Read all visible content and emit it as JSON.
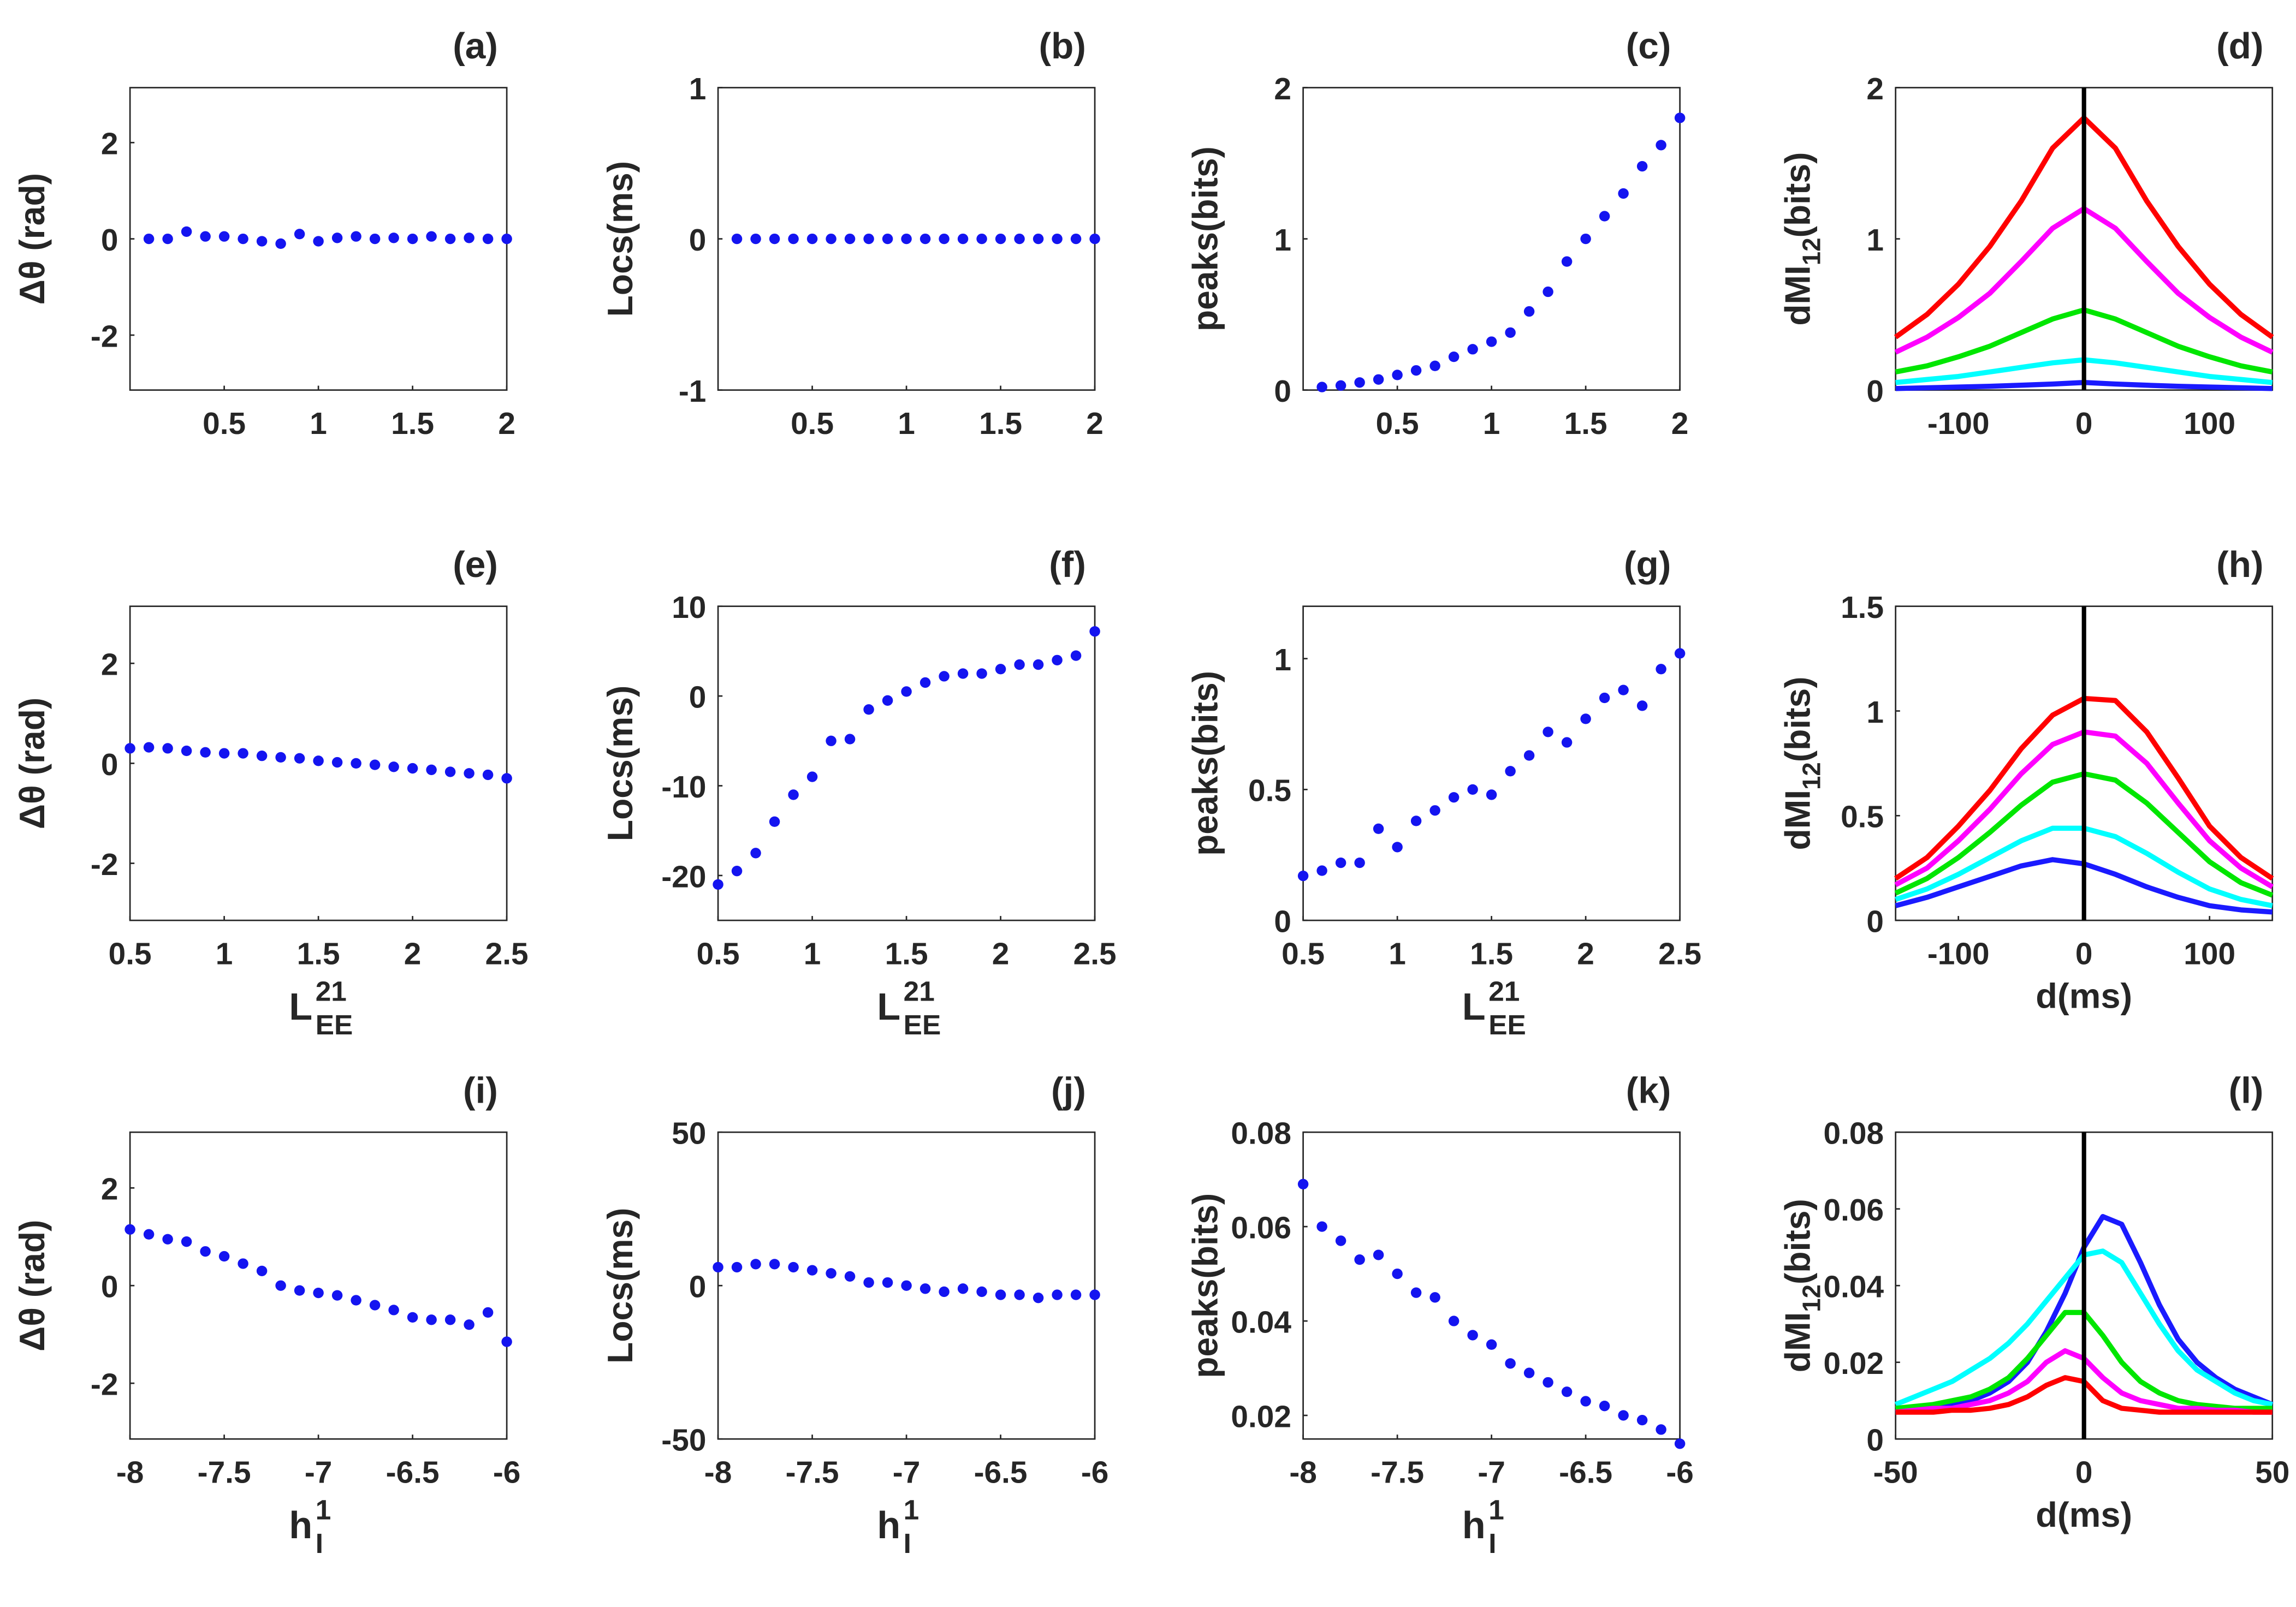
{
  "chart_data": [
    {
      "type": "scatter",
      "title": "(a)",
      "ylabel": "Δθ (rad)",
      "color": "#1414f0",
      "x": [
        0.1,
        0.2,
        0.3,
        0.4,
        0.5,
        0.6,
        0.7,
        0.8,
        0.9,
        1.0,
        1.1,
        1.2,
        1.3,
        1.4,
        1.5,
        1.6,
        1.7,
        1.8,
        1.9,
        2.0
      ],
      "values": [
        0,
        0,
        0.15,
        0.05,
        0.05,
        0,
        -0.05,
        -0.1,
        0.1,
        -0.05,
        0.02,
        0.05,
        0,
        0.02,
        0,
        0.05,
        0,
        0.02,
        0,
        0
      ],
      "xlim": [
        0,
        2
      ],
      "xticks": [
        0.5,
        1,
        1.5,
        2
      ],
      "ylim": [
        -3.1416,
        3.1416
      ],
      "yticks": [
        -2,
        0,
        2
      ]
    },
    {
      "type": "scatter",
      "title": "(b)",
      "ylabel": "Locs(ms)",
      "color": "#1414f0",
      "x": [
        0.1,
        0.2,
        0.3,
        0.4,
        0.5,
        0.6,
        0.7,
        0.8,
        0.9,
        1.0,
        1.1,
        1.2,
        1.3,
        1.4,
        1.5,
        1.6,
        1.7,
        1.8,
        1.9,
        2.0
      ],
      "values": [
        0,
        0,
        0,
        0,
        0,
        0,
        0,
        0,
        0,
        0,
        0,
        0,
        0,
        0,
        0,
        0,
        0,
        0,
        0,
        0
      ],
      "xlim": [
        0,
        2
      ],
      "xticks": [
        0.5,
        1,
        1.5,
        2
      ],
      "ylim": [
        -1,
        1
      ],
      "yticks": [
        -1,
        0,
        1
      ]
    },
    {
      "type": "scatter",
      "title": "(c)",
      "ylabel": "peaks(bits)",
      "color": "#1414f0",
      "x": [
        0.1,
        0.2,
        0.3,
        0.4,
        0.5,
        0.6,
        0.7,
        0.8,
        0.9,
        1.0,
        1.1,
        1.2,
        1.3,
        1.4,
        1.5,
        1.6,
        1.7,
        1.8,
        1.9,
        2.0
      ],
      "values": [
        0.02,
        0.03,
        0.05,
        0.07,
        0.1,
        0.13,
        0.16,
        0.22,
        0.27,
        0.32,
        0.38,
        0.52,
        0.65,
        0.85,
        1.0,
        1.15,
        1.3,
        1.48,
        1.62,
        1.8
      ],
      "xlim": [
        0,
        2
      ],
      "xticks": [
        0.5,
        1,
        1.5,
        2
      ],
      "ylim": [
        0,
        2
      ],
      "yticks": [
        0,
        1,
        2
      ]
    },
    {
      "type": "line",
      "title": "(d)",
      "ylabel": "dMI",
      "ylabel_sub": "12",
      "ylabel_tail": "(bits)",
      "vline": 0,
      "x": [
        -150,
        -125,
        -100,
        -75,
        -50,
        -25,
        0,
        25,
        50,
        75,
        100,
        125,
        150
      ],
      "series": [
        {
          "color": "#ff0000",
          "values": [
            0.35,
            0.5,
            0.7,
            0.95,
            1.25,
            1.6,
            1.8,
            1.6,
            1.25,
            0.95,
            0.7,
            0.5,
            0.35
          ]
        },
        {
          "color": "#ff00ff",
          "values": [
            0.25,
            0.35,
            0.48,
            0.64,
            0.85,
            1.07,
            1.2,
            1.07,
            0.85,
            0.64,
            0.48,
            0.35,
            0.25
          ]
        },
        {
          "color": "#00e600",
          "values": [
            0.12,
            0.16,
            0.22,
            0.29,
            0.38,
            0.47,
            0.53,
            0.47,
            0.38,
            0.29,
            0.22,
            0.16,
            0.12
          ]
        },
        {
          "color": "#00ffff",
          "values": [
            0.05,
            0.07,
            0.09,
            0.12,
            0.15,
            0.18,
            0.2,
            0.18,
            0.15,
            0.12,
            0.09,
            0.07,
            0.05
          ]
        },
        {
          "color": "#1a1aff",
          "values": [
            0.01,
            0.015,
            0.02,
            0.025,
            0.032,
            0.04,
            0.05,
            0.04,
            0.032,
            0.025,
            0.02,
            0.015,
            0.01
          ]
        }
      ],
      "xlim": [
        -150,
        150
      ],
      "xticks": [
        -100,
        0,
        100
      ],
      "ylim": [
        0,
        2
      ],
      "yticks": [
        0,
        1,
        2
      ]
    },
    {
      "type": "scatter",
      "title": "(e)",
      "ylabel": "Δθ (rad)",
      "xlabel": "L",
      "xlabel_sup": "21",
      "xlabel_sub": "EE",
      "color": "#1414f0",
      "x": [
        0.5,
        0.6,
        0.7,
        0.8,
        0.9,
        1.0,
        1.1,
        1.2,
        1.3,
        1.4,
        1.5,
        1.6,
        1.7,
        1.8,
        1.9,
        2.0,
        2.1,
        2.2,
        2.3,
        2.4,
        2.5
      ],
      "values": [
        0.3,
        0.32,
        0.3,
        0.25,
        0.22,
        0.2,
        0.2,
        0.15,
        0.12,
        0.1,
        0.05,
        0.02,
        0,
        -0.03,
        -0.07,
        -0.1,
        -0.13,
        -0.17,
        -0.2,
        -0.23,
        -0.3
      ],
      "xlim": [
        0.5,
        2.5
      ],
      "xticks": [
        0.5,
        1,
        1.5,
        2,
        2.5
      ],
      "ylim": [
        -3.1416,
        3.1416
      ],
      "yticks": [
        -2,
        0,
        2
      ]
    },
    {
      "type": "scatter",
      "title": "(f)",
      "ylabel": "Locs(ms)",
      "xlabel": "L",
      "xlabel_sup": "21",
      "xlabel_sub": "EE",
      "color": "#1414f0",
      "x": [
        0.5,
        0.6,
        0.7,
        0.8,
        0.9,
        1.0,
        1.1,
        1.2,
        1.3,
        1.4,
        1.5,
        1.6,
        1.7,
        1.8,
        1.9,
        2.0,
        2.1,
        2.2,
        2.3,
        2.4,
        2.5
      ],
      "values": [
        -21,
        -19.5,
        -17.5,
        -14,
        -11,
        -9,
        -5,
        -4.8,
        -1.5,
        -0.5,
        0.5,
        1.5,
        2.2,
        2.5,
        2.5,
        3,
        3.5,
        3.5,
        4,
        4.5,
        7.2
      ],
      "xlim": [
        0.5,
        2.5
      ],
      "xticks": [
        0.5,
        1,
        1.5,
        2,
        2.5
      ],
      "ylim": [
        -25,
        10
      ],
      "yticks": [
        -20,
        -10,
        0,
        10
      ]
    },
    {
      "type": "scatter",
      "title": "(g)",
      "ylabel": "peaks(bits)",
      "xlabel": "L",
      "xlabel_sup": "21",
      "xlabel_sub": "EE",
      "color": "#1414f0",
      "x": [
        0.5,
        0.6,
        0.7,
        0.8,
        0.9,
        1.0,
        1.1,
        1.2,
        1.3,
        1.4,
        1.5,
        1.6,
        1.7,
        1.8,
        1.9,
        2.0,
        2.1,
        2.2,
        2.3,
        2.4,
        2.5
      ],
      "values": [
        0.17,
        0.19,
        0.22,
        0.22,
        0.35,
        0.28,
        0.38,
        0.42,
        0.47,
        0.5,
        0.48,
        0.57,
        0.63,
        0.72,
        0.68,
        0.77,
        0.85,
        0.88,
        0.82,
        0.96,
        1.02
      ],
      "xlim": [
        0.5,
        2.5
      ],
      "xticks": [
        0.5,
        1,
        1.5,
        2,
        2.5
      ],
      "ylim": [
        0,
        1.2
      ],
      "yticks": [
        0,
        0.5,
        1
      ]
    },
    {
      "type": "line",
      "title": "(h)",
      "ylabel": "dMI",
      "ylabel_sub": "12",
      "ylabel_tail": "(bits)",
      "xlabel": "d(ms)",
      "vline": 0,
      "x": [
        -150,
        -125,
        -100,
        -75,
        -50,
        -25,
        0,
        25,
        50,
        75,
        100,
        125,
        150
      ],
      "series": [
        {
          "color": "#ff0000",
          "values": [
            0.2,
            0.3,
            0.45,
            0.62,
            0.82,
            0.98,
            1.06,
            1.05,
            0.9,
            0.68,
            0.45,
            0.3,
            0.2
          ]
        },
        {
          "color": "#ff00ff",
          "values": [
            0.17,
            0.25,
            0.38,
            0.53,
            0.7,
            0.84,
            0.9,
            0.88,
            0.75,
            0.56,
            0.38,
            0.25,
            0.16
          ]
        },
        {
          "color": "#00e600",
          "values": [
            0.13,
            0.2,
            0.3,
            0.42,
            0.55,
            0.66,
            0.7,
            0.67,
            0.56,
            0.42,
            0.28,
            0.18,
            0.12
          ]
        },
        {
          "color": "#00ffff",
          "values": [
            0.1,
            0.15,
            0.22,
            0.3,
            0.38,
            0.44,
            0.44,
            0.4,
            0.32,
            0.23,
            0.15,
            0.1,
            0.07
          ]
        },
        {
          "color": "#1a1aff",
          "values": [
            0.07,
            0.11,
            0.16,
            0.21,
            0.26,
            0.29,
            0.27,
            0.22,
            0.16,
            0.11,
            0.07,
            0.05,
            0.04
          ]
        }
      ],
      "xlim": [
        -150,
        150
      ],
      "xticks": [
        -100,
        0,
        100
      ],
      "ylim": [
        0,
        1.5
      ],
      "yticks": [
        0,
        0.5,
        1,
        1.5
      ]
    },
    {
      "type": "scatter",
      "title": "(i)",
      "ylabel": "Δθ (rad)",
      "xlabel": "h",
      "xlabel_sup": "1",
      "xlabel_sub": "I",
      "color": "#1414f0",
      "x": [
        -8,
        -7.9,
        -7.8,
        -7.7,
        -7.6,
        -7.5,
        -7.4,
        -7.3,
        -7.2,
        -7.1,
        -7,
        -6.9,
        -6.8,
        -6.7,
        -6.6,
        -6.5,
        -6.4,
        -6.3,
        -6.2,
        -6.1,
        -6
      ],
      "values": [
        1.15,
        1.05,
        0.95,
        0.9,
        0.7,
        0.6,
        0.45,
        0.3,
        0,
        -0.1,
        -0.15,
        -0.2,
        -0.3,
        -0.4,
        -0.5,
        -0.65,
        -0.7,
        -0.7,
        -0.8,
        -0.55,
        -1.15
      ],
      "xlim": [
        -8,
        -6
      ],
      "xticks": [
        -8,
        -7.5,
        -7,
        -6.5,
        -6
      ],
      "ylim": [
        -3.1416,
        3.1416
      ],
      "yticks": [
        -2,
        0,
        2
      ]
    },
    {
      "type": "scatter",
      "title": "(j)",
      "ylabel": "Locs(ms)",
      "xlabel": "h",
      "xlabel_sup": "1",
      "xlabel_sub": "I",
      "color": "#1414f0",
      "x": [
        -8,
        -7.9,
        -7.8,
        -7.7,
        -7.6,
        -7.5,
        -7.4,
        -7.3,
        -7.2,
        -7.1,
        -7,
        -6.9,
        -6.8,
        -6.7,
        -6.6,
        -6.5,
        -6.4,
        -6.3,
        -6.2,
        -6.1,
        -6
      ],
      "values": [
        6,
        6,
        7,
        7,
        6,
        5,
        4,
        3,
        1,
        1,
        0,
        -1,
        -2,
        -1,
        -2,
        -3,
        -3,
        -4,
        -3,
        -3,
        -3
      ],
      "xlim": [
        -8,
        -6
      ],
      "xticks": [
        -8,
        -7.5,
        -7,
        -6.5,
        -6
      ],
      "ylim": [
        -50,
        50
      ],
      "yticks": [
        -50,
        0,
        50
      ]
    },
    {
      "type": "scatter",
      "title": "(k)",
      "ylabel": "peaks(bits)",
      "xlabel": "h",
      "xlabel_sup": "1",
      "xlabel_sub": "I",
      "color": "#1414f0",
      "x": [
        -8,
        -7.9,
        -7.8,
        -7.7,
        -7.6,
        -7.5,
        -7.4,
        -7.3,
        -7.2,
        -7.1,
        -7,
        -6.9,
        -6.8,
        -6.7,
        -6.6,
        -6.5,
        -6.4,
        -6.3,
        -6.2,
        -6.1,
        -6
      ],
      "values": [
        0.069,
        0.06,
        0.057,
        0.053,
        0.054,
        0.05,
        0.046,
        0.045,
        0.04,
        0.037,
        0.035,
        0.031,
        0.029,
        0.027,
        0.025,
        0.023,
        0.022,
        0.02,
        0.019,
        0.017,
        0.014
      ],
      "xlim": [
        -8,
        -6
      ],
      "xticks": [
        -8,
        -7.5,
        -7,
        -6.5,
        -6
      ],
      "ylim": [
        0.015,
        0.08
      ],
      "yticks": [
        0.02,
        0.04,
        0.06,
        0.08
      ]
    },
    {
      "type": "line",
      "title": "(l)",
      "ylabel": "dMI",
      "ylabel_sub": "12",
      "ylabel_tail": "(bits)",
      "xlabel": "d(ms)",
      "vline": 0,
      "x": [
        -50,
        -45,
        -40,
        -35,
        -30,
        -25,
        -20,
        -15,
        -10,
        -5,
        0,
        5,
        10,
        15,
        20,
        25,
        30,
        35,
        40,
        45,
        50
      ],
      "series": [
        {
          "color": "#1a1aff",
          "values": [
            0.007,
            0.0075,
            0.008,
            0.009,
            0.01,
            0.012,
            0.015,
            0.02,
            0.028,
            0.038,
            0.05,
            0.058,
            0.056,
            0.046,
            0.035,
            0.026,
            0.02,
            0.016,
            0.013,
            0.011,
            0.009
          ]
        },
        {
          "color": "#00ffff",
          "values": [
            0.009,
            0.011,
            0.013,
            0.015,
            0.018,
            0.021,
            0.025,
            0.03,
            0.036,
            0.042,
            0.048,
            0.049,
            0.046,
            0.038,
            0.03,
            0.023,
            0.018,
            0.015,
            0.012,
            0.01,
            0.009
          ]
        },
        {
          "color": "#00e600",
          "values": [
            0.008,
            0.0085,
            0.009,
            0.01,
            0.011,
            0.013,
            0.016,
            0.021,
            0.027,
            0.033,
            0.033,
            0.027,
            0.02,
            0.015,
            0.012,
            0.01,
            0.009,
            0.0085,
            0.008,
            0.008,
            0.008
          ]
        },
        {
          "color": "#ff00ff",
          "values": [
            0.007,
            0.0075,
            0.008,
            0.008,
            0.009,
            0.01,
            0.012,
            0.015,
            0.02,
            0.023,
            0.021,
            0.016,
            0.012,
            0.01,
            0.009,
            0.008,
            0.008,
            0.0075,
            0.0075,
            0.007,
            0.007
          ]
        },
        {
          "color": "#ff0000",
          "values": [
            0.007,
            0.007,
            0.007,
            0.0075,
            0.0075,
            0.008,
            0.009,
            0.011,
            0.014,
            0.016,
            0.015,
            0.01,
            0.008,
            0.0075,
            0.007,
            0.007,
            0.007,
            0.007,
            0.007,
            0.007,
            0.007
          ]
        }
      ],
      "xlim": [
        -50,
        50
      ],
      "xticks": [
        -50,
        0,
        50
      ],
      "ylim": [
        0,
        0.08
      ],
      "yticks": [
        0,
        0.02,
        0.04,
        0.06,
        0.08
      ]
    }
  ]
}
